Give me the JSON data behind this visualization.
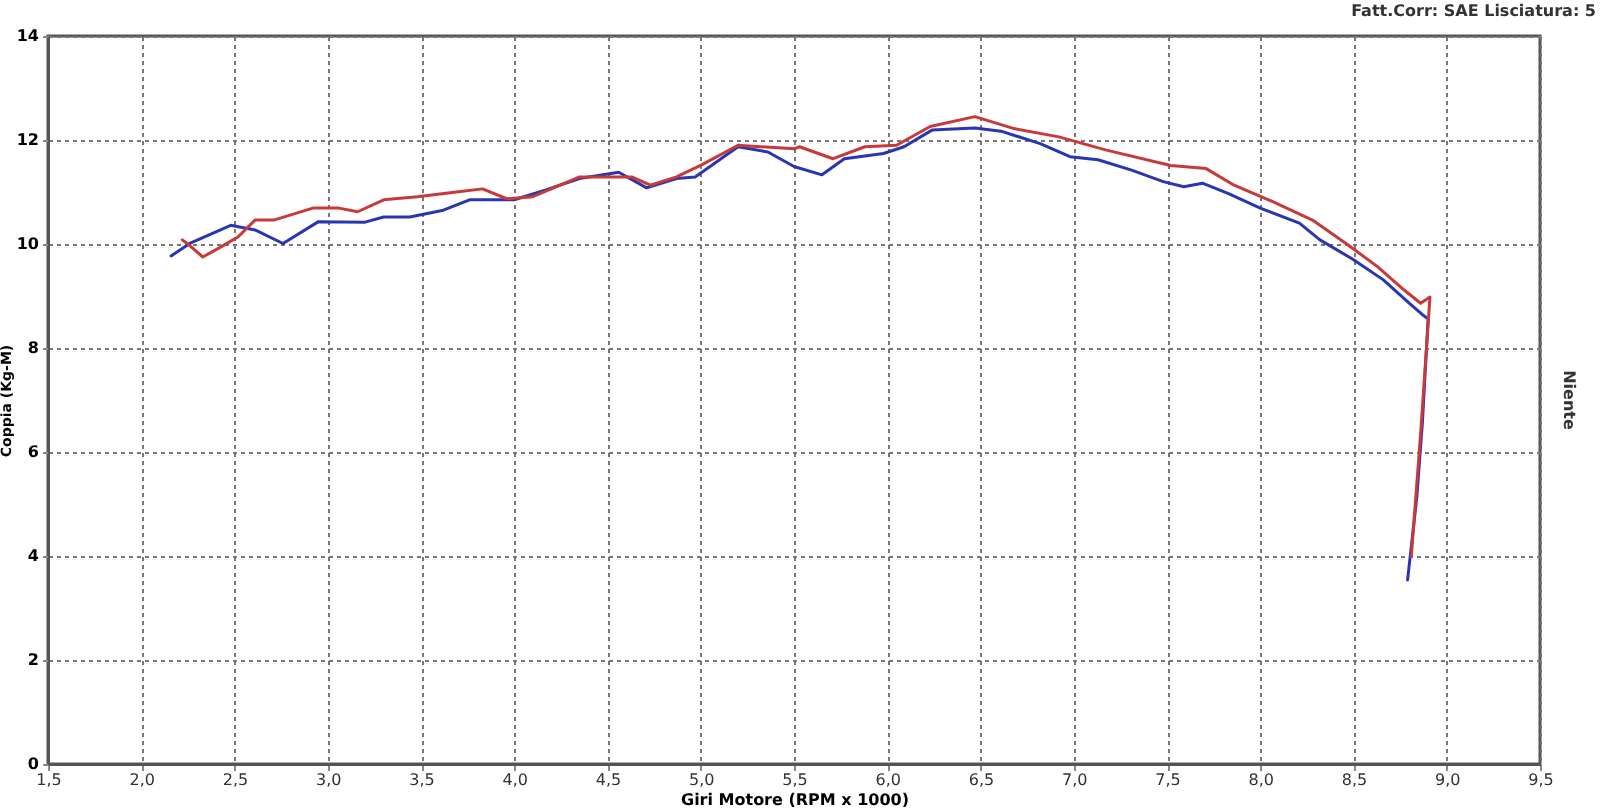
{
  "chart_data": {
    "type": "line",
    "xlabel": "Giri Motore (RPM x 1000)",
    "ylabel": "Coppia (Kg-M)",
    "y2label": "Niente",
    "annotations": [
      "Fatt.Corr: SAE  Lisciatura: 5"
    ],
    "xlim": [
      1.5,
      9.5
    ],
    "xticks": [
      {
        "value": 1.5,
        "label": "1,5"
      },
      {
        "value": 2,
        "label": "2,0"
      },
      {
        "value": 2.5,
        "label": "2,5"
      },
      {
        "value": 3,
        "label": "3,0"
      },
      {
        "value": 3.5,
        "label": "3,5"
      },
      {
        "value": 4,
        "label": "4,0"
      },
      {
        "value": 4.5,
        "label": "4,5"
      },
      {
        "value": 5,
        "label": "5,0"
      },
      {
        "value": 5.5,
        "label": "5,5"
      },
      {
        "value": 6,
        "label": "6,0"
      },
      {
        "value": 6.5,
        "label": "6,5"
      },
      {
        "value": 7,
        "label": "7,0"
      },
      {
        "value": 7.5,
        "label": "7,5"
      },
      {
        "value": 8,
        "label": "8,0"
      },
      {
        "value": 8.5,
        "label": "8,5"
      },
      {
        "value": 9,
        "label": "9,0"
      },
      {
        "value": 9.5,
        "label": "9,5"
      }
    ],
    "ylim": [
      0,
      14
    ],
    "yticks": [
      0,
      2,
      4,
      6,
      8,
      10,
      12,
      14
    ],
    "grid": true,
    "series": [
      {
        "color": "#2a36b0",
        "x": [
          2.16,
          2.26,
          2.48,
          2.61,
          2.76,
          2.95,
          3.2,
          3.3,
          3.44,
          3.62,
          3.76,
          4.0,
          4.17,
          4.35,
          4.56,
          4.71,
          4.87,
          4.97,
          5.2,
          5.36,
          5.5,
          5.65,
          5.77,
          5.98,
          6.09,
          6.24,
          6.47,
          6.61,
          6.82,
          6.98,
          7.13,
          7.31,
          7.48,
          7.59,
          7.69,
          7.83,
          8.0,
          8.21,
          8.32,
          8.49,
          8.66,
          8.8,
          8.87,
          8.9,
          8.87,
          8.84,
          8.79
        ],
        "values": [
          9.77,
          10.01,
          10.36,
          10.27,
          10.01,
          10.43,
          10.42,
          10.52,
          10.52,
          10.65,
          10.85,
          10.85,
          11.04,
          11.26,
          11.38,
          11.08,
          11.26,
          11.29,
          11.87,
          11.77,
          11.49,
          11.33,
          11.64,
          11.74,
          11.87,
          12.19,
          12.23,
          12.17,
          11.93,
          11.68,
          11.62,
          11.42,
          11.2,
          11.1,
          11.17,
          10.97,
          10.69,
          10.4,
          10.08,
          9.72,
          9.31,
          8.86,
          8.64,
          8.56,
          6.6,
          5.15,
          3.54
        ]
      },
      {
        "color": "#c8393a",
        "x": [
          2.22,
          2.26,
          2.33,
          2.43,
          2.52,
          2.61,
          2.71,
          2.92,
          3.06,
          3.16,
          3.3,
          3.48,
          3.69,
          3.83,
          3.96,
          4.1,
          4.35,
          4.63,
          4.73,
          4.87,
          5.01,
          5.2,
          5.5,
          5.53,
          5.71,
          5.88,
          6.05,
          6.23,
          6.47,
          6.68,
          6.92,
          7.17,
          7.52,
          7.71,
          7.86,
          8.07,
          8.28,
          8.46,
          8.63,
          8.77,
          8.86,
          8.91,
          8.86,
          8.81
        ],
        "values": [
          10.08,
          9.97,
          9.75,
          9.95,
          10.14,
          10.46,
          10.46,
          10.69,
          10.69,
          10.62,
          10.85,
          10.91,
          11.0,
          11.06,
          10.87,
          10.91,
          11.29,
          11.29,
          11.13,
          11.29,
          11.53,
          11.9,
          11.83,
          11.87,
          11.64,
          11.87,
          11.9,
          12.26,
          12.45,
          12.22,
          12.06,
          11.81,
          11.51,
          11.45,
          11.13,
          10.81,
          10.46,
          10.01,
          9.56,
          9.12,
          8.86,
          8.98,
          6.36,
          3.99
        ]
      }
    ]
  }
}
